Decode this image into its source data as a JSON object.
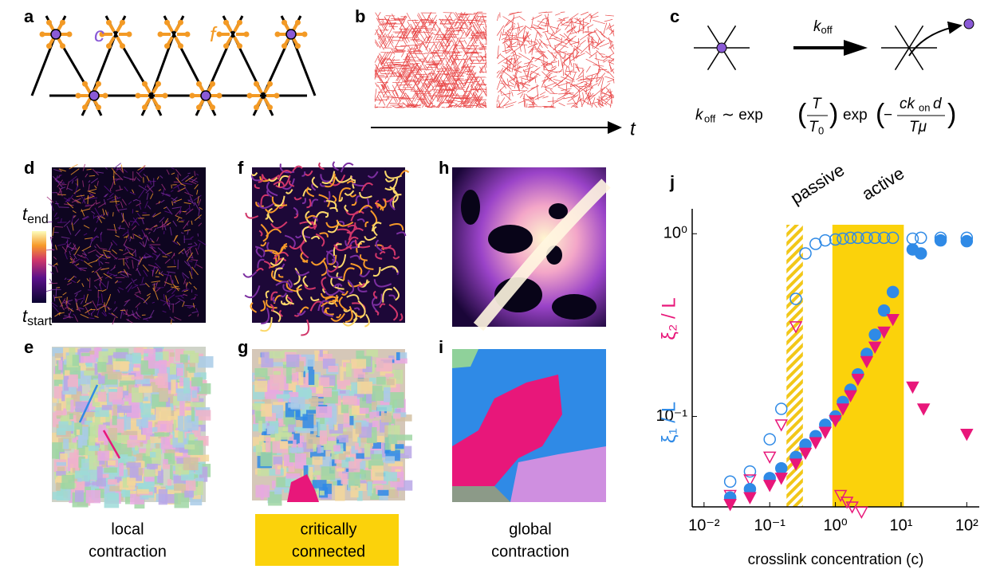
{
  "panels": {
    "letters": [
      "a",
      "b",
      "c",
      "d",
      "e",
      "f",
      "g",
      "h",
      "i",
      "j"
    ],
    "a": {
      "crosslink": "c",
      "force": "f"
    },
    "b": {
      "time": "t"
    },
    "c": {
      "rate": "k",
      "rate_sub": "off",
      "formula": {
        "lhs": "k",
        "lhs_sub": "off",
        "sim": "∼ exp",
        "num1": "T",
        "den1": "T",
        "den1_sub": "0",
        "exp2": "exp",
        "minus": "−",
        "num2": "ck",
        "num2_sub": "on",
        "num2_tail": "d",
        "den2": "Tμ"
      }
    },
    "colorbar": {
      "end": "t",
      "end_sub": "end",
      "start": "t",
      "start_sub": "start"
    },
    "captions": [
      [
        "local",
        "contraction"
      ],
      [
        "critically",
        "connected"
      ],
      [
        "global",
        "contraction"
      ]
    ]
  },
  "chart_data": {
    "type": "scatter",
    "xlabel": "crosslink concentration (c)",
    "ylabels": [
      {
        "text": "ξ₂ / L",
        "color": "#e8177a"
      },
      {
        "text": "ξ₁ / L",
        "color": "#2f8ae6"
      }
    ],
    "log_x": true,
    "log_y": true,
    "xlim": [
      0.0066,
      155
    ],
    "ylim": [
      0.032,
      1.12
    ],
    "xticks": [
      {
        "value": 0.01,
        "label": "10⁻²"
      },
      {
        "value": 0.1,
        "label": "10⁻¹"
      },
      {
        "value": 1,
        "label": "10⁰"
      },
      {
        "value": 10,
        "label": "10¹"
      },
      {
        "value": 100,
        "label": "10²"
      }
    ],
    "yticks": [
      {
        "value": 0.1,
        "label": "10⁻¹"
      },
      {
        "value": 1,
        "label": "10⁰"
      }
    ],
    "regions": [
      {
        "label": "passive",
        "range": [
          0.18,
          0.32
        ],
        "style": "hatched",
        "color": "#f7cf1e"
      },
      {
        "label": "active",
        "range": [
          0.9,
          11
        ],
        "style": "solid",
        "color": "#fbd20b"
      }
    ],
    "series": [
      {
        "marker": "circle",
        "filled": false,
        "color": "#2f8ae6",
        "x": [
          0.025,
          0.05,
          0.1,
          0.15,
          0.25,
          0.35,
          0.5,
          0.7,
          1,
          1.3,
          1.7,
          2.2,
          3,
          4,
          5.5,
          7.5,
          15,
          20,
          40,
          100
        ],
        "values": [
          0.044,
          0.05,
          0.075,
          0.11,
          0.44,
          0.78,
          0.88,
          0.92,
          0.93,
          0.94,
          0.95,
          0.95,
          0.95,
          0.95,
          0.95,
          0.95,
          0.94,
          0.95,
          0.95,
          0.95
        ]
      },
      {
        "marker": "triangle",
        "filled": false,
        "color": "#e8177a",
        "x": [
          0.025,
          0.05,
          0.1,
          0.15,
          0.25,
          1.2,
          1.5,
          1.8,
          2.5
        ],
        "values": [
          0.037,
          0.045,
          0.06,
          0.09,
          0.31,
          0.037,
          0.034,
          0.032,
          0.03
        ]
      },
      {
        "marker": "circle",
        "filled": true,
        "color": "#2f8ae6",
        "x": [
          0.025,
          0.05,
          0.1,
          0.15,
          0.25,
          0.35,
          0.5,
          0.7,
          1,
          1.3,
          1.7,
          2.2,
          3,
          4,
          5.5,
          7.5,
          15,
          20,
          40,
          100
        ],
        "values": [
          0.036,
          0.04,
          0.046,
          0.052,
          0.06,
          0.07,
          0.078,
          0.09,
          0.1,
          0.12,
          0.14,
          0.17,
          0.22,
          0.28,
          0.38,
          0.48,
          0.82,
          0.78,
          0.92,
          0.91
        ]
      },
      {
        "marker": "triangle",
        "filled": true,
        "color": "#e8177a",
        "x": [
          0.025,
          0.05,
          0.1,
          0.15,
          0.25,
          0.35,
          0.5,
          0.7,
          1,
          1.3,
          1.7,
          2.2,
          3,
          4,
          5.5,
          7.5,
          15,
          22,
          100
        ],
        "values": [
          0.033,
          0.036,
          0.042,
          0.046,
          0.055,
          0.063,
          0.072,
          0.082,
          0.095,
          0.11,
          0.13,
          0.16,
          0.2,
          0.24,
          0.29,
          0.34,
          0.145,
          0.11,
          0.08
        ]
      }
    ]
  }
}
